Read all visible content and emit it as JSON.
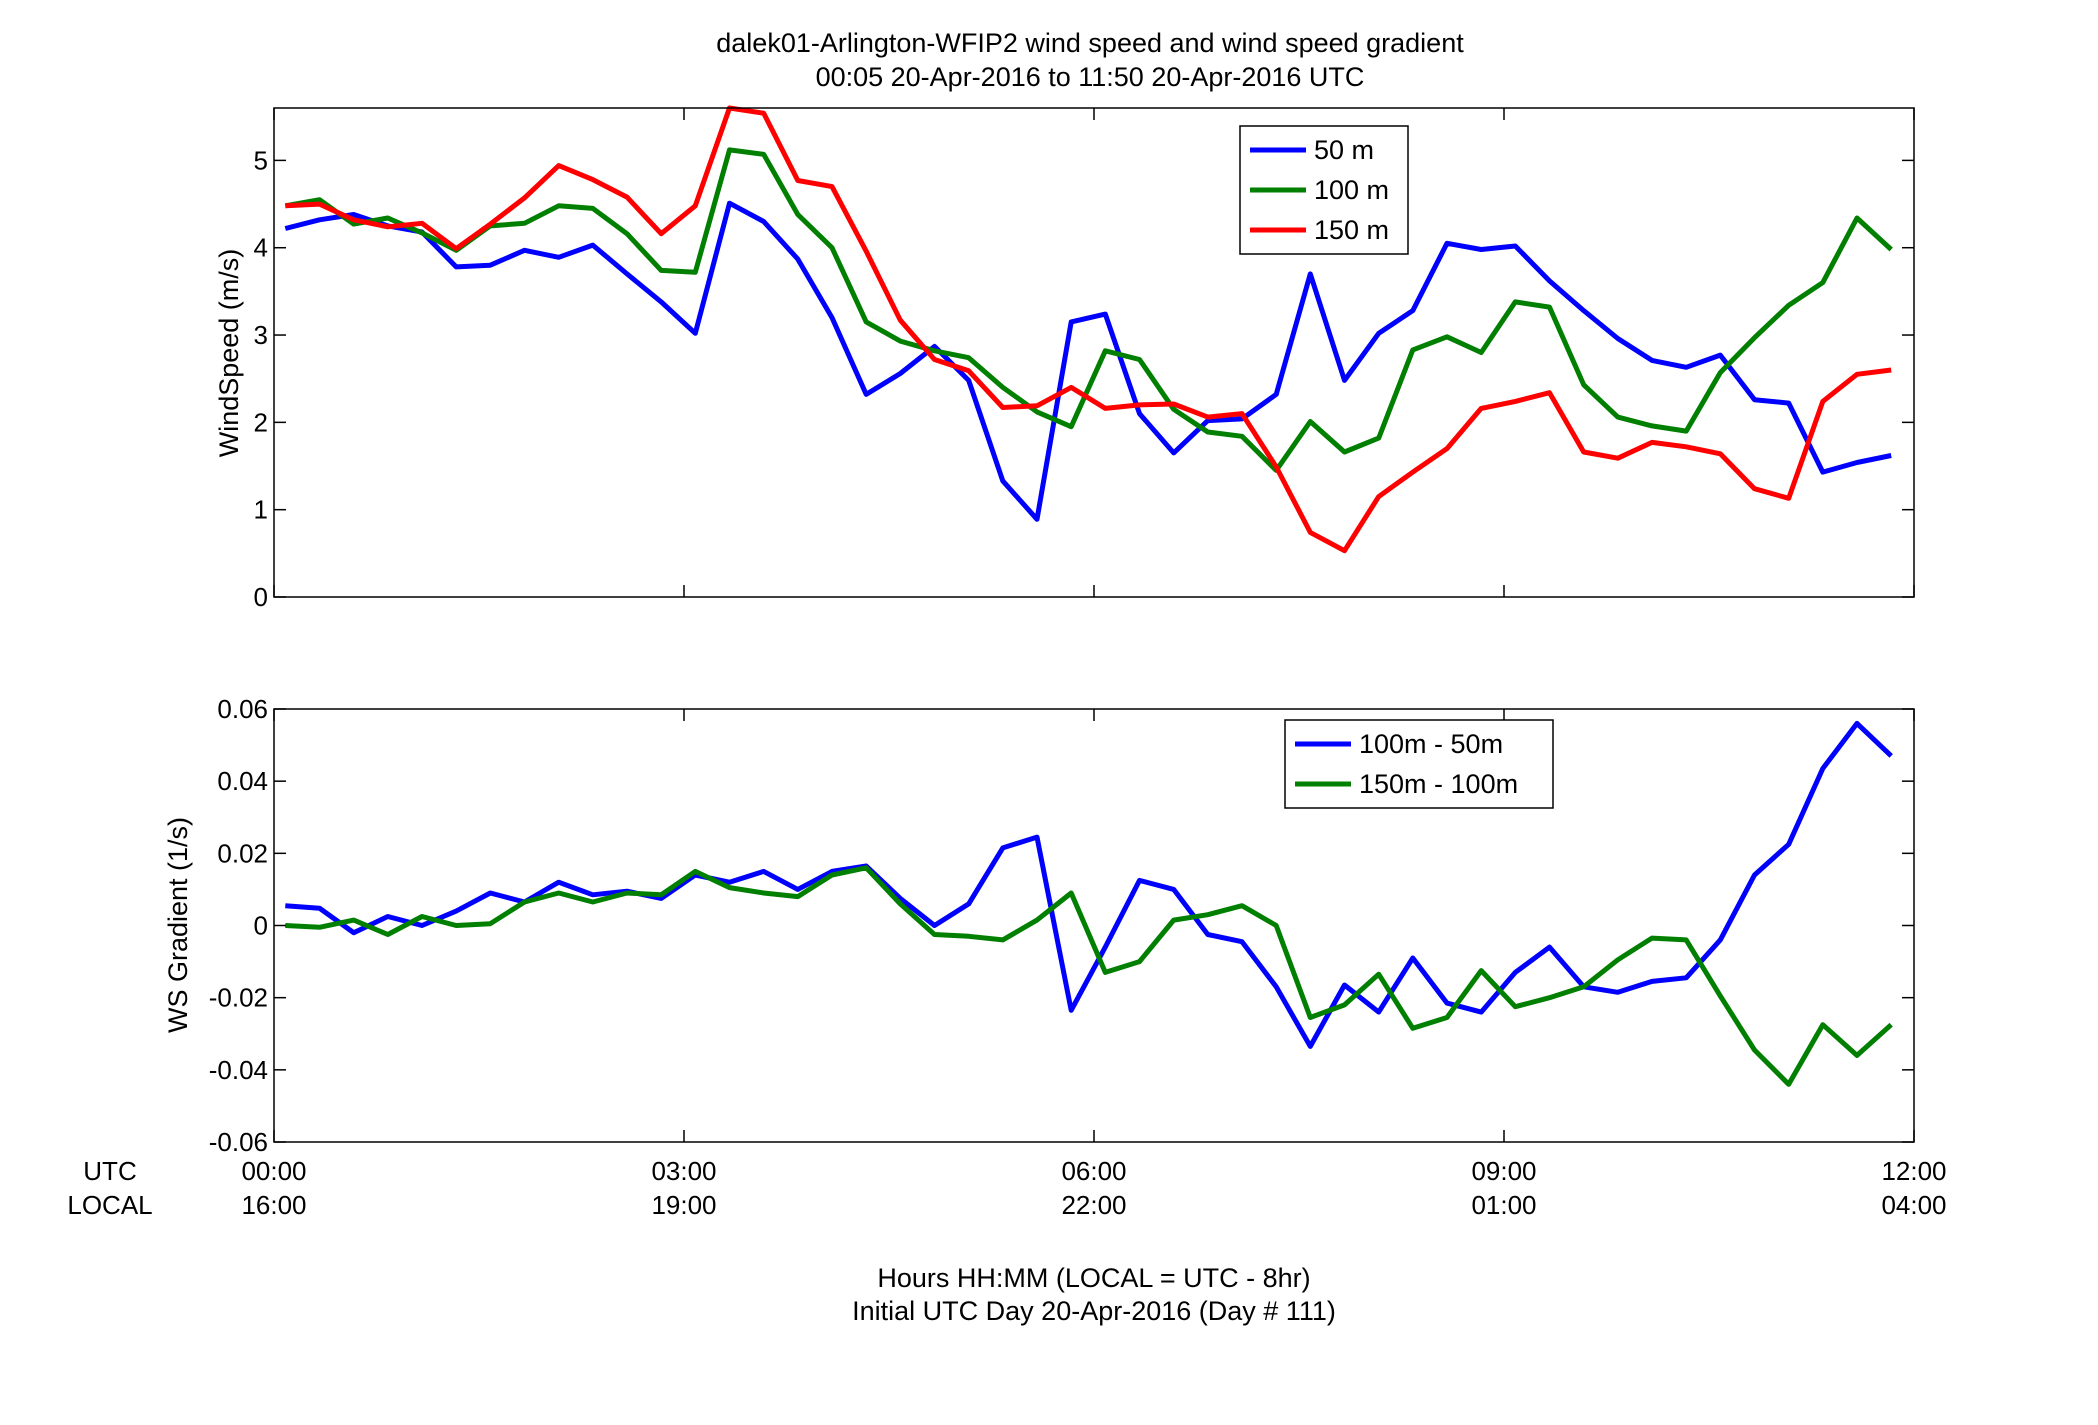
{
  "title": [
    "dalek01-Arlington-WFIP2  wind speed and wind speed gradient",
    "00:05 20-Apr-2016 to 11:50 20-Apr-2016  UTC"
  ],
  "xlabel": [
    "Hours HH:MM  (LOCAL = UTC - 8hr)",
    "Initial UTC Day 20-Apr-2016 (Day # 111)"
  ],
  "x_row_labels": [
    "UTC",
    "LOCAL"
  ],
  "colors": {
    "blue": "#0000ff",
    "green": "#007f00",
    "red": "#ff0000"
  },
  "chart_data": [
    {
      "type": "line",
      "ylabel": "WindSpeed (m/s)",
      "xlim": [
        0,
        12
      ],
      "ylim": [
        0,
        5.6
      ],
      "grid": false,
      "legend_position": "top-right",
      "x_ticks_utc": [
        "00:00",
        "03:00",
        "06:00",
        "09:00",
        "12:00"
      ],
      "x_ticks_local": [
        "16:00",
        "19:00",
        "22:00",
        "01:00",
        "04:00"
      ],
      "y_ticks": [
        "0",
        "1",
        "2",
        "3",
        "4",
        "5"
      ],
      "x": [
        0.083,
        0.333,
        0.583,
        0.833,
        1.083,
        1.333,
        1.583,
        1.833,
        2.083,
        2.333,
        2.583,
        2.833,
        3.083,
        3.333,
        3.583,
        3.833,
        4.083,
        4.333,
        4.583,
        4.833,
        5.083,
        5.333,
        5.583,
        5.833,
        6.083,
        6.333,
        6.583,
        6.833,
        7.083,
        7.333,
        7.583,
        7.833,
        8.083,
        8.333,
        8.583,
        8.833,
        9.083,
        9.333,
        9.583,
        9.833,
        10.083,
        10.333,
        10.583,
        10.833,
        11.083,
        11.333,
        11.583,
        11.833
      ],
      "series": [
        {
          "name": "50 m",
          "color": "#0000ff",
          "values": [
            4.22,
            4.32,
            4.38,
            4.25,
            4.18,
            3.78,
            3.8,
            3.97,
            3.89,
            4.03,
            3.7,
            3.38,
            3.02,
            4.51,
            4.3,
            3.87,
            3.2,
            2.32,
            2.56,
            2.87,
            2.48,
            1.33,
            0.89,
            3.15,
            3.24,
            2.1,
            1.65,
            2.02,
            2.04,
            2.32,
            3.7,
            2.48,
            3.02,
            3.28,
            4.05,
            3.98,
            4.02,
            3.62,
            3.28,
            2.96,
            2.71,
            2.63,
            2.77,
            2.26,
            2.22,
            1.43,
            1.54,
            1.62
          ]
        },
        {
          "name": "100 m",
          "color": "#007f00",
          "values": [
            4.48,
            4.55,
            4.27,
            4.34,
            4.17,
            3.97,
            4.25,
            4.28,
            4.48,
            4.45,
            4.16,
            3.74,
            3.72,
            5.12,
            5.07,
            4.38,
            4.0,
            3.15,
            2.93,
            2.82,
            2.74,
            2.4,
            2.12,
            1.95,
            2.82,
            2.72,
            2.15,
            1.89,
            1.84,
            1.45,
            2.01,
            1.66,
            1.82,
            2.83,
            2.98,
            2.8,
            3.38,
            3.32,
            2.43,
            2.06,
            1.96,
            1.9,
            2.57,
            2.97,
            3.34,
            3.6,
            4.34,
            3.98
          ]
        },
        {
          "name": "150 m",
          "color": "#ff0000",
          "values": [
            4.48,
            4.5,
            4.32,
            4.24,
            4.28,
            3.99,
            4.27,
            4.57,
            4.94,
            4.78,
            4.58,
            4.16,
            4.48,
            5.62,
            5.54,
            4.77,
            4.7,
            3.96,
            3.17,
            2.72,
            2.59,
            2.17,
            2.19,
            2.4,
            2.16,
            2.2,
            2.21,
            2.06,
            2.1,
            1.49,
            0.74,
            0.53,
            1.15,
            1.43,
            1.7,
            2.16,
            2.24,
            2.34,
            1.66,
            1.59,
            1.77,
            1.72,
            1.64,
            1.24,
            1.13,
            2.24,
            2.55,
            2.6
          ]
        }
      ]
    },
    {
      "type": "line",
      "ylabel": "WS Gradient (1/s)",
      "xlim": [
        0,
        12
      ],
      "ylim": [
        -0.06,
        0.06
      ],
      "grid": false,
      "legend_position": "top-right",
      "x_ticks_utc": [
        "00:00",
        "03:00",
        "06:00",
        "09:00",
        "12:00"
      ],
      "x_ticks_local": [
        "16:00",
        "19:00",
        "22:00",
        "01:00",
        "04:00"
      ],
      "y_ticks": [
        "-0.06",
        "-0.04",
        "-0.02",
        "0",
        "0.02",
        "0.04",
        "0.06"
      ],
      "x": [
        0.083,
        0.333,
        0.583,
        0.833,
        1.083,
        1.333,
        1.583,
        1.833,
        2.083,
        2.333,
        2.583,
        2.833,
        3.083,
        3.333,
        3.583,
        3.833,
        4.083,
        4.333,
        4.583,
        4.833,
        5.083,
        5.333,
        5.583,
        5.833,
        6.083,
        6.333,
        6.583,
        6.833,
        7.083,
        7.333,
        7.583,
        7.833,
        8.083,
        8.333,
        8.583,
        8.833,
        9.083,
        9.333,
        9.583,
        9.833,
        10.083,
        10.333,
        10.583,
        10.833,
        11.083,
        11.333,
        11.583,
        11.833
      ],
      "series": [
        {
          "name": "100m - 50m",
          "color": "#0000ff",
          "values": [
            0.0055,
            0.0048,
            -0.002,
            0.0025,
            0.0,
            0.004,
            0.009,
            0.0065,
            0.012,
            0.0085,
            0.0095,
            0.0075,
            0.014,
            0.012,
            0.015,
            0.01,
            0.015,
            0.0165,
            0.0075,
            0.0,
            0.006,
            0.0215,
            0.0245,
            -0.0235,
            -0.006,
            0.0125,
            0.01,
            -0.0025,
            -0.0045,
            -0.017,
            -0.0335,
            -0.0165,
            -0.024,
            -0.009,
            -0.0215,
            -0.024,
            -0.013,
            -0.006,
            -0.017,
            -0.0185,
            -0.0155,
            -0.0145,
            -0.004,
            0.014,
            0.0225,
            0.0435,
            0.056,
            0.047
          ]
        },
        {
          "name": "150m - 100m",
          "color": "#007f00",
          "values": [
            0.0,
            -0.0005,
            0.0015,
            -0.0025,
            0.0025,
            0.0,
            0.0005,
            0.0065,
            0.009,
            0.0065,
            0.009,
            0.0085,
            0.015,
            0.0105,
            0.009,
            0.008,
            0.014,
            0.016,
            0.006,
            -0.0025,
            -0.003,
            -0.004,
            0.0015,
            0.009,
            -0.013,
            -0.01,
            0.0015,
            0.003,
            0.0055,
            0.0,
            -0.0255,
            -0.022,
            -0.0135,
            -0.0285,
            -0.0255,
            -0.0125,
            -0.0225,
            -0.02,
            -0.017,
            -0.0095,
            -0.0035,
            -0.004,
            -0.0195,
            -0.0345,
            -0.044,
            -0.0275,
            -0.036,
            -0.0275
          ]
        }
      ]
    }
  ]
}
